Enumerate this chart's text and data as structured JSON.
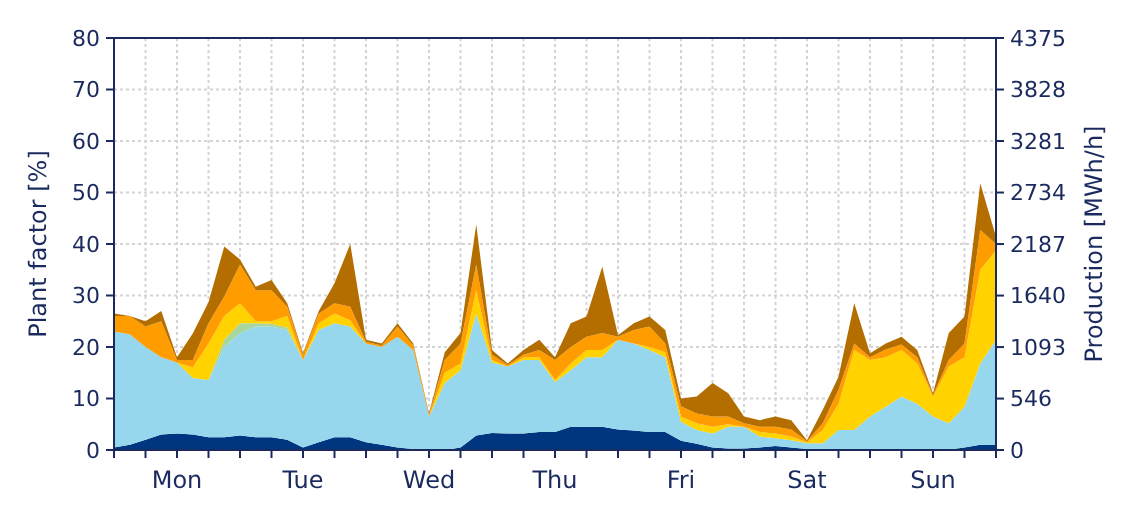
{
  "chart_data": {
    "type": "area",
    "stacked": true,
    "ylabel": "Plant factor [%]",
    "y2label": "Production [MWh/h]",
    "categories": [
      null,
      null,
      null,
      null,
      "Mon",
      null,
      null,
      null,
      null,
      null,
      null,
      null,
      "Tue",
      null,
      null,
      null,
      null,
      null,
      null,
      null,
      "Wed",
      null,
      null,
      null,
      null,
      null,
      null,
      null,
      "Thu",
      null,
      null,
      null,
      null,
      null,
      null,
      null,
      "Fri",
      null,
      null,
      null,
      null,
      null,
      null,
      null,
      "Sat",
      null,
      null,
      null,
      null,
      null,
      null,
      null,
      "Sun",
      null,
      null,
      null,
      null
    ],
    "ylim": [
      0,
      80
    ],
    "yticks": [
      0,
      10,
      20,
      30,
      40,
      50,
      60,
      70,
      80
    ],
    "y2lim": [
      0,
      4375
    ],
    "y2ticks": [
      0,
      546,
      1093,
      1640,
      2187,
      2734,
      3281,
      3828,
      4375
    ],
    "grid": true,
    "series": [
      {
        "color": "#003580",
        "values": [
          0.5,
          1,
          2,
          3,
          3.2,
          3,
          2.5,
          2.5,
          2.8,
          2.5,
          2.5,
          2,
          0.5,
          1.5,
          2.5,
          2.5,
          1.5,
          1,
          0.5,
          0.2,
          0,
          0,
          0.5,
          2.8,
          3.3,
          3.2,
          3.2,
          3.5,
          3.5,
          4.5,
          4.5,
          4.5,
          4,
          3.8,
          3.5,
          3.5,
          1.8,
          1.2,
          0.5,
          0.3,
          0.3,
          0.5,
          0.8,
          0.5,
          0.2,
          0,
          0,
          0.2,
          0.2,
          0.1,
          0.1,
          0.1,
          0.1,
          0.1,
          0.5,
          1,
          1
        ]
      },
      {
        "color": "#96d7ee",
        "values": [
          22.5,
          21.5,
          18,
          15,
          13.8,
          11,
          11.1,
          17.5,
          19.9,
          21.5,
          21.5,
          21.3,
          17,
          21.8,
          22.1,
          21.5,
          19.2,
          19,
          21.5,
          19.2,
          6.5,
          13,
          15,
          23.7,
          13.7,
          13,
          14.3,
          14,
          9.7,
          11,
          13.5,
          13.5,
          17.4,
          16.9,
          15.9,
          14.5,
          3.7,
          2.7,
          2.7,
          4.2,
          4.2,
          2.1,
          1.5,
          1.4,
          1.1,
          1.3,
          3.9,
          3.7,
          6.3,
          8.3,
          10.3,
          8.9,
          6.4,
          5.1,
          7.9,
          15.8,
          20.4
        ]
      },
      {
        "color": "#a9d59e",
        "values": [
          0,
          0,
          0,
          0,
          0,
          0,
          0,
          1.4,
          1.9,
          0.6,
          0.5,
          0.5,
          0,
          0,
          0,
          0,
          0,
          0,
          0,
          0,
          0,
          0,
          0,
          0,
          0,
          0,
          0,
          0,
          0,
          0,
          0,
          0,
          0,
          0,
          0,
          0,
          0,
          0,
          0,
          0,
          0,
          0,
          0,
          0,
          0,
          0,
          0,
          0,
          0,
          0,
          0,
          0,
          0,
          0,
          0,
          0,
          0
        ]
      },
      {
        "color": "#ffd200",
        "values": [
          0,
          0,
          0,
          0,
          0,
          2,
          7.1,
          4.6,
          3.9,
          0.4,
          0.5,
          2.2,
          0,
          1.3,
          1.9,
          1.2,
          0,
          0,
          0,
          0,
          0,
          2,
          1.3,
          4.5,
          0.5,
          0,
          0.5,
          0.5,
          0.4,
          1.3,
          1.4,
          1.4,
          0,
          0,
          0.6,
          1,
          1,
          1.3,
          1.3,
          0.5,
          0,
          0.9,
          0.9,
          0.7,
          0.2,
          2.6,
          5.1,
          15.5,
          11,
          9.6,
          9,
          7.8,
          3.9,
          11,
          9.6,
          18.2,
          17.4
        ]
      },
      {
        "color": "#ff9c00",
        "values": [
          3,
          3.5,
          4,
          7,
          0.5,
          1.5,
          3.9,
          3.8,
          7.5,
          6,
          6,
          1.8,
          1,
          1.9,
          2,
          2.6,
          0.3,
          0.3,
          2,
          0.9,
          0.3,
          2.5,
          3.9,
          5,
          1,
          0.3,
          0.5,
          1.4,
          3.9,
          3.2,
          2.6,
          3.3,
          0.6,
          2.6,
          4,
          1.7,
          2,
          1.9,
          2,
          1.5,
          0.7,
          1,
          1.3,
          1.4,
          0.2,
          1.3,
          2.7,
          1.3,
          0.5,
          1.5,
          1.1,
          1.2,
          0.3,
          1.3,
          2.7,
          7.7,
          1.2
        ]
      },
      {
        "color": "#b46e00",
        "values": [
          0.5,
          0,
          1,
          2,
          0.5,
          5.1,
          4.1,
          9.7,
          1,
          0.7,
          2,
          0.7,
          0.3,
          0.5,
          3.9,
          12.2,
          0.4,
          0.4,
          0.6,
          0.4,
          0.3,
          1.5,
          2,
          7.8,
          0.9,
          0.3,
          0.9,
          2,
          0.5,
          4.6,
          3.9,
          12.9,
          0.3,
          1.3,
          1.9,
          2.6,
          1.5,
          3.3,
          6.5,
          4.5,
          1.3,
          1.3,
          2,
          1.8,
          0.2,
          2.6,
          2.5,
          7.8,
          0.8,
          1.2,
          1.5,
          1.4,
          0.3,
          5.2,
          5.2,
          9.1,
          1.4
        ]
      }
    ]
  }
}
